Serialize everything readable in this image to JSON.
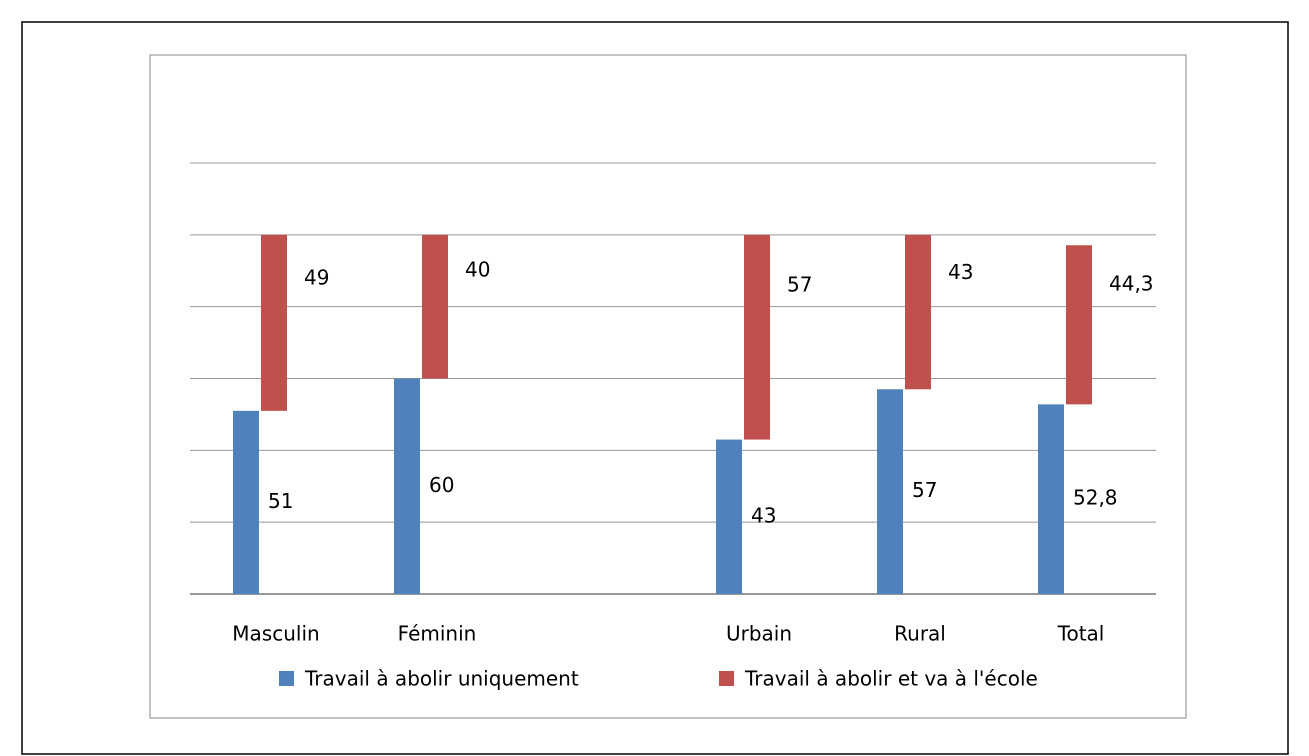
{
  "chart_data": {
    "type": "stacked_bar",
    "categories": [
      "Masculin",
      "Féminin",
      null,
      "Urbain",
      "Rural",
      "Total"
    ],
    "series": [
      {
        "name": "Travail à abolir uniquement",
        "color": "#4f81bd",
        "values": [
          51,
          60,
          null,
          43,
          57,
          52.8
        ],
        "value_labels": [
          "51",
          "60",
          null,
          "43",
          "57",
          "52,8"
        ]
      },
      {
        "name": "Travail à abolir et va à l'école",
        "color": "#c0504d",
        "values": [
          49,
          40,
          null,
          57,
          43,
          44.3
        ],
        "value_labels": [
          "49",
          "40",
          null,
          "57",
          "43",
          "44,3"
        ]
      }
    ],
    "ylim": [
      0,
      120
    ],
    "yticks": [
      0,
      20,
      40,
      60,
      80,
      100,
      120
    ],
    "grid": true,
    "legend": "bottom"
  }
}
